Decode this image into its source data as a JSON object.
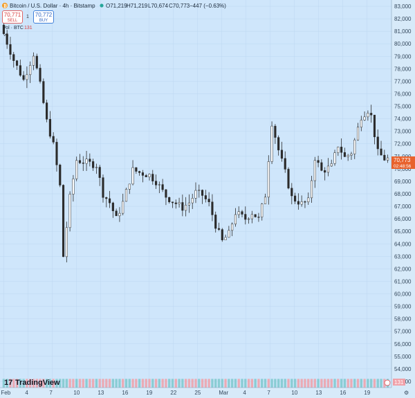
{
  "header": {
    "symbol": "Bitcoin / U.S. Dollar · 4h · Bitstamp",
    "open": "O71,219",
    "high": "H71,219",
    "low": "L70,674",
    "close": "C70,773",
    "change": "−447 (−0.63%)"
  },
  "trade": {
    "sell_price": "70,771",
    "sell_label": "SELL",
    "spread": "1",
    "buy_price": "70,772",
    "buy_label": "BUY"
  },
  "volume": {
    "label": "Vol · BTC",
    "value": "131"
  },
  "price_tag": {
    "price": "70,773",
    "countdown": "02:48:56"
  },
  "watermark": "TradingView",
  "colors": {
    "background": "#cfe6fb",
    "candle": "#2b2b2b",
    "vol_up": "#7ec8cc",
    "vol_down": "#f0a0a8",
    "price_tag": "#e8622c",
    "grid": "#bcd7f0"
  },
  "chart_data": {
    "type": "candlestick",
    "y_ticks": [
      "83,000",
      "82,000",
      "81,000",
      "80,000",
      "79,000",
      "78,000",
      "77,000",
      "76,000",
      "75,000",
      "74,000",
      "73,000",
      "72,000",
      "71,000",
      "70,000",
      "69,000",
      "68,000",
      "67,000",
      "66,000",
      "65,000",
      "64,000",
      "63,000",
      "62,000",
      "61,000",
      "60,000",
      "59,000",
      "58,000",
      "57,000",
      "56,000",
      "55,000",
      "54,000",
      "53,000"
    ],
    "x_ticks": [
      "Feb",
      "4",
      "7",
      "10",
      "13",
      "16",
      "19",
      "22",
      "25",
      "Mar",
      "4",
      "7",
      "10",
      "13",
      "16",
      "19"
    ],
    "ylim": [
      52500,
      83500
    ],
    "grid": true,
    "price_path": [
      [
        0,
        81500
      ],
      [
        4,
        78700
      ],
      [
        7,
        77100
      ],
      [
        10,
        79200
      ],
      [
        12,
        76700
      ],
      [
        14,
        73800
      ],
      [
        16,
        71900
      ],
      [
        18,
        68600
      ],
      [
        19,
        63000
      ],
      [
        21,
        67700
      ],
      [
        23,
        70700
      ],
      [
        26,
        70500
      ],
      [
        29,
        70300
      ],
      [
        31,
        68000
      ],
      [
        33,
        67300
      ],
      [
        35,
        66000
      ],
      [
        37,
        67300
      ],
      [
        40,
        69900
      ],
      [
        42,
        69700
      ],
      [
        45,
        69500
      ],
      [
        47,
        69000
      ],
      [
        50,
        67800
      ],
      [
        52,
        67400
      ],
      [
        55,
        66900
      ],
      [
        57,
        67300
      ],
      [
        59,
        68100
      ],
      [
        61,
        67900
      ],
      [
        63,
        67200
      ],
      [
        65,
        65500
      ],
      [
        67,
        64200
      ],
      [
        69,
        64800
      ],
      [
        71,
        66500
      ],
      [
        74,
        66000
      ],
      [
        76,
        66500
      ],
      [
        78,
        66000
      ],
      [
        80,
        67900
      ],
      [
        82,
        73700
      ],
      [
        84,
        71500
      ],
      [
        86,
        69700
      ],
      [
        88,
        67700
      ],
      [
        91,
        67200
      ],
      [
        93,
        67400
      ],
      [
        95,
        70900
      ],
      [
        97,
        69800
      ],
      [
        100,
        70200
      ],
      [
        102,
        71900
      ],
      [
        104,
        70900
      ],
      [
        106,
        71300
      ],
      [
        109,
        74200
      ],
      [
        111,
        74700
      ],
      [
        112,
        74200
      ],
      [
        114,
        71300
      ],
      [
        116,
        70800
      ]
    ],
    "volume_shape": [
      [
        0,
        58
      ],
      [
        3,
        54
      ],
      [
        6,
        55
      ],
      [
        8,
        54
      ],
      [
        10,
        53.7
      ],
      [
        12,
        53.8
      ],
      [
        14,
        54.5
      ],
      [
        16,
        55
      ],
      [
        18,
        57.3
      ],
      [
        19,
        60
      ],
      [
        21,
        56
      ],
      [
        23,
        54.5
      ],
      [
        26,
        54
      ],
      [
        30,
        53.8
      ],
      [
        34,
        54
      ],
      [
        38,
        54.3
      ],
      [
        42,
        53.9
      ],
      [
        46,
        54
      ],
      [
        50,
        54.2
      ],
      [
        54,
        54
      ],
      [
        58,
        53.8
      ],
      [
        62,
        53.8
      ],
      [
        66,
        54.3
      ],
      [
        70,
        54.2
      ],
      [
        74,
        54.5
      ],
      [
        78,
        55.2
      ],
      [
        80,
        55
      ],
      [
        82,
        55.5
      ],
      [
        85,
        54.5
      ],
      [
        90,
        54.2
      ],
      [
        95,
        54.5
      ],
      [
        100,
        54.8
      ],
      [
        105,
        54.4
      ],
      [
        110,
        54.3
      ],
      [
        116,
        54.3
      ]
    ],
    "candle_count": 117
  }
}
